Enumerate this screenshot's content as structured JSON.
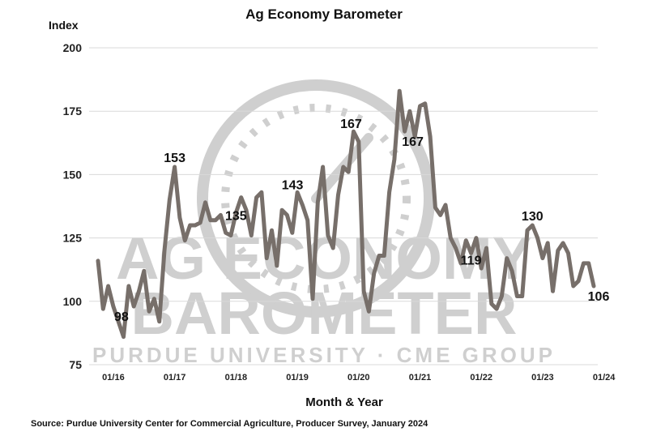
{
  "watermark": {
    "line1": "AG ECONOMY",
    "line2": "BAROMETER",
    "line3": "PURDUE UNIVERSITY · CME GROUP"
  },
  "source": "Source: Purdue University Center for Commercial Agriculture, Producer Survey, January 2024",
  "colors": {
    "series": "#776f6a",
    "grid": "#d9d9d9",
    "watermark": "#cfcfcf"
  },
  "chart_data": {
    "type": "line",
    "title": "Ag Economy Barometer",
    "ylabel": "Index",
    "xlabel": "Month & Year",
    "ylim": [
      75,
      200
    ],
    "yticks": [
      75,
      100,
      125,
      150,
      175,
      200
    ],
    "xticks": [
      {
        "label": "01/16",
        "index": 3
      },
      {
        "label": "01/17",
        "index": 15
      },
      {
        "label": "01/18",
        "index": 27
      },
      {
        "label": "01/19",
        "index": 39
      },
      {
        "label": "01/20",
        "index": 51
      },
      {
        "label": "01/21",
        "index": 63
      },
      {
        "label": "01/22",
        "index": 75
      },
      {
        "label": "01/23",
        "index": 87
      },
      {
        "label": "01/24",
        "index": 99
      }
    ],
    "grid": true,
    "series": [
      {
        "values": [
          116,
          97,
          106,
          98,
          92,
          86,
          106,
          98,
          104,
          112,
          96,
          101,
          92,
          120,
          140,
          153,
          133,
          124,
          130,
          130,
          131,
          139,
          132,
          132,
          134,
          127,
          126,
          135,
          141,
          136,
          126,
          141,
          143,
          117,
          128,
          114,
          136,
          134,
          127,
          143,
          138,
          132,
          101,
          139,
          153,
          126,
          121,
          142,
          153,
          151,
          167,
          163,
          104,
          96,
          111,
          118,
          118,
          143,
          156,
          183,
          167,
          175,
          165,
          177,
          178,
          165,
          137,
          134,
          138,
          125,
          121,
          115,
          124,
          119,
          125,
          113,
          121,
          99,
          97,
          102,
          117,
          112,
          102,
          102,
          128,
          130,
          125,
          117,
          123,
          104,
          120,
          123,
          119,
          106,
          108,
          115,
          115,
          106
        ]
      }
    ],
    "data_labels": [
      {
        "index": 3,
        "value": 98,
        "text": "98"
      },
      {
        "index": 15,
        "value": 153,
        "text": "153"
      },
      {
        "index": 27,
        "value": 135,
        "text": "135"
      },
      {
        "index": 39,
        "value": 143,
        "text": "143"
      },
      {
        "index": 50,
        "value": 167,
        "text": "167"
      },
      {
        "index": 60,
        "value": 167,
        "text": "167"
      },
      {
        "index": 73,
        "value": 119,
        "text": "119"
      },
      {
        "index": 85,
        "value": 130,
        "text": "130"
      },
      {
        "index": 97,
        "value": 106,
        "text": "106"
      }
    ]
  }
}
